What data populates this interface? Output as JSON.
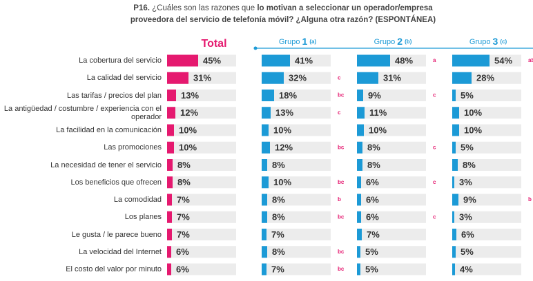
{
  "chart_data": {
    "type": "bar",
    "orientation": "horizontal",
    "title_parts": [
      "P16.",
      "¿Cuáles son las razones que",
      "lo motivan a seleccionar un operador/empresa",
      "proveedora del servicio de telefonía móvil? ¿Alguna otra razón? (ESPONTÁNEA)"
    ],
    "categories": [
      "La cobertura del servicio",
      "La calidad del servicio",
      "Las tarifas / precios del plan",
      "La antigüedad / costumbre / experiencia con el operador",
      "La facilidad en la comunicación",
      "Las promociones",
      "La necesidad de tener el servicio",
      "Los beneficios que ofrecen",
      "La comodidad",
      "Los planes",
      "Le gusta / le parece bueno",
      "La velocidad del Internet",
      "El costo del valor por minuto"
    ],
    "xlim": [
      0,
      100
    ],
    "series": [
      {
        "name": "Total",
        "color": "#e5196f",
        "values": [
          45,
          31,
          13,
          12,
          10,
          10,
          8,
          8,
          7,
          7,
          7,
          6,
          6
        ],
        "value_labels": [
          "45%",
          "31%",
          "13%",
          "12%",
          "10%",
          "10%",
          "8%",
          "8%",
          "7%",
          "7%",
          "7%",
          "6%",
          "6%"
        ]
      },
      {
        "name": "Grupo",
        "number": "1",
        "tag": "(a)",
        "color": "#1c9ad6",
        "values": [
          41,
          32,
          18,
          13,
          10,
          12,
          8,
          10,
          8,
          8,
          7,
          8,
          7
        ],
        "value_labels": [
          "41%",
          "32%",
          "18%",
          "13%",
          "10%",
          "12%",
          "8%",
          "10%",
          "8%",
          "8%",
          "7%",
          "8%",
          "7%"
        ],
        "letters": [
          null,
          "c",
          "bc",
          "c",
          null,
          "bc",
          null,
          "bc",
          "b",
          "bc",
          null,
          "bc",
          "bc"
        ]
      },
      {
        "name": "Grupo",
        "number": "2",
        "tag": "(b)",
        "color": "#1c9ad6",
        "values": [
          48,
          31,
          9,
          11,
          10,
          8,
          8,
          6,
          6,
          6,
          7,
          5,
          5
        ],
        "value_labels": [
          "48%",
          "31%",
          "9%",
          "11%",
          "10%",
          "8%",
          "8%",
          "6%",
          "6%",
          "6%",
          "7%",
          "5%",
          "5%"
        ],
        "letters": [
          "a",
          null,
          "c",
          null,
          null,
          "c",
          null,
          "c",
          null,
          "c",
          null,
          null,
          null
        ]
      },
      {
        "name": "Grupo",
        "number": "3",
        "tag": "(c)",
        "color": "#1c9ad6",
        "values": [
          54,
          28,
          5,
          10,
          10,
          5,
          8,
          3,
          9,
          3,
          6,
          5,
          4
        ],
        "value_labels": [
          "54%",
          "28%",
          "5%",
          "10%",
          "10%",
          "5%",
          "8%",
          "3%",
          "9%",
          "3%",
          "6%",
          "5%",
          "4%"
        ],
        "letters": [
          "ab",
          null,
          null,
          null,
          null,
          null,
          null,
          null,
          "b",
          null,
          null,
          null,
          null
        ]
      }
    ]
  }
}
